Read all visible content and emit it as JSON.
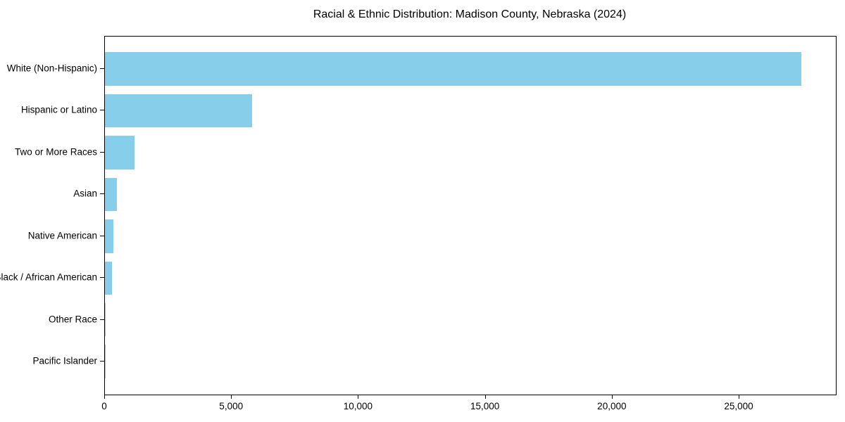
{
  "chart_data": {
    "type": "bar",
    "orientation": "horizontal",
    "title": "Racial & Ethnic Distribution: Madison County, Nebraska (2024)",
    "categories": [
      "White (Non-Hispanic)",
      "Hispanic or Latino",
      "Two or More Races",
      "Asian",
      "Native American",
      "Black / African American",
      "Other Race",
      "Pacific Islander"
    ],
    "values": [
      27450,
      5800,
      1170,
      480,
      340,
      290,
      40,
      15
    ],
    "xlabel": "",
    "ylabel": "",
    "xlim": [
      0,
      28800
    ],
    "xticks": [
      0,
      5000,
      10000,
      15000,
      20000,
      25000
    ],
    "xtick_labels": [
      "0",
      "5,000",
      "10,000",
      "15,000",
      "20,000",
      "25,000"
    ],
    "bar_color": "#87ceeb",
    "axis_color": "#000000",
    "text_color": "#000000",
    "grid": false,
    "legend": null
  }
}
